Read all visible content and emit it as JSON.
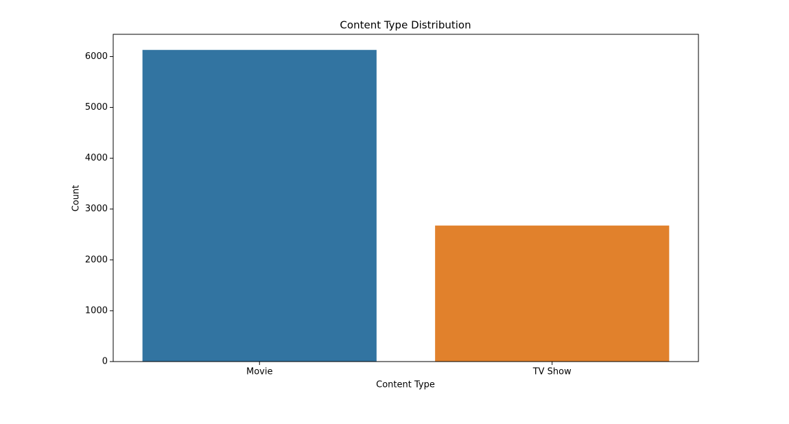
{
  "chart_data": {
    "type": "bar",
    "title": "Content Type Distribution",
    "x_label": "Content Type",
    "y_label": "Count",
    "categories": [
      "Movie",
      "TV Show"
    ],
    "values": [
      6131,
      2676
    ],
    "colors": [
      "#3274a1",
      "#e1812c"
    ],
    "ylim": [
      0,
      6438
    ],
    "yticks": [
      0,
      1000,
      2000,
      3000,
      4000,
      5000,
      6000
    ]
  }
}
